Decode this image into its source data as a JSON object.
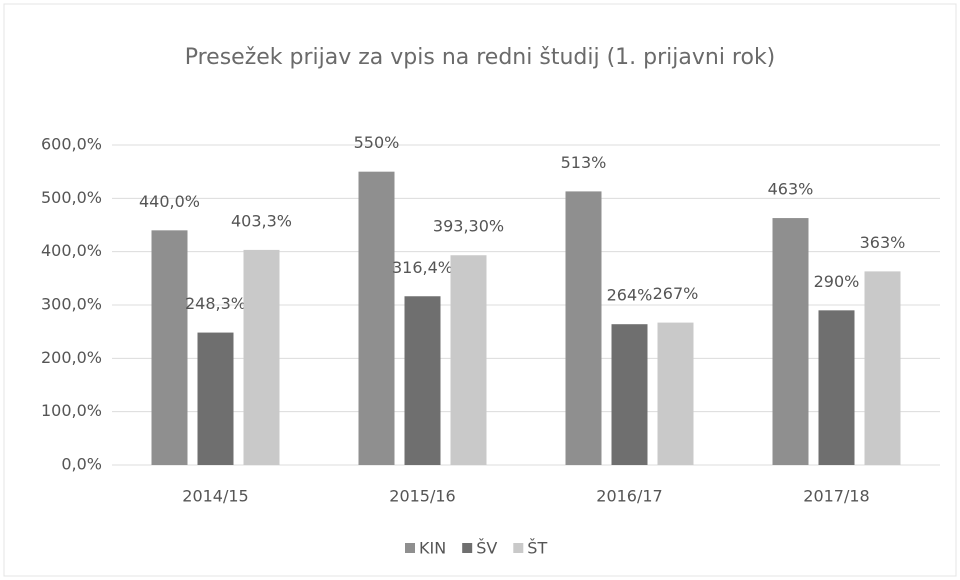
{
  "chart_data": {
    "type": "bar",
    "title": "Presežek prijav za vpis na redni študij (1. prijavni rok)",
    "categories": [
      "2014/15",
      "2015/16",
      "2016/17",
      "2017/18"
    ],
    "series": [
      {
        "name": "KIN",
        "color": "#8f8f8f",
        "values": [
          440,
          550,
          513,
          463
        ],
        "value_labels": [
          "440,0%",
          "550%",
          "513%",
          "463%"
        ]
      },
      {
        "name": "ŠV",
        "color": "#6f6f6f",
        "values": [
          248.3,
          316.4,
          264,
          290
        ],
        "value_labels": [
          "248,3%",
          "316,4%",
          "264%",
          "290%"
        ]
      },
      {
        "name": "ŠT",
        "color": "#c9c9c9",
        "values": [
          403.3,
          393.3,
          267,
          363
        ],
        "value_labels": [
          "403,3%",
          "393,30%",
          "267%",
          "363%"
        ]
      }
    ],
    "ylim": [
      0,
      600
    ],
    "yticks": [
      {
        "value": 0,
        "label": "0,0%"
      },
      {
        "value": 100,
        "label": "100,0%"
      },
      {
        "value": 200,
        "label": "200,0%"
      },
      {
        "value": 300,
        "label": "300,0%"
      },
      {
        "value": 400,
        "label": "400,0%"
      },
      {
        "value": 500,
        "label": "500,0%"
      },
      {
        "value": 600,
        "label": "600,0%"
      }
    ],
    "grid": true,
    "legend": "bottom"
  }
}
